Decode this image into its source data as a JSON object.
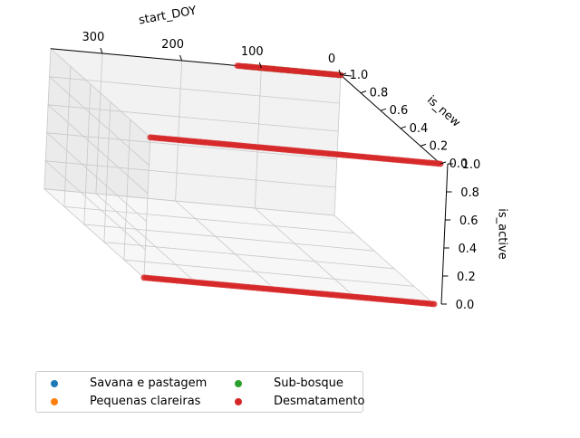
{
  "chart_data": {
    "type": "scatter",
    "projection": "3d",
    "axes": {
      "x": {
        "label": "start_DOY",
        "ticks": [
          0,
          100,
          200,
          300
        ],
        "range": [
          0,
          365
        ]
      },
      "y": {
        "label": "is_new",
        "ticks": [
          "0.0",
          "0.2",
          "0.4",
          "0.6",
          "0.8",
          "1.0"
        ],
        "range": [
          0,
          1
        ]
      },
      "z": {
        "label": "is_active",
        "ticks": [
          "0.0",
          "0.2",
          "0.4",
          "0.6",
          "0.8",
          "1.0"
        ],
        "range": [
          0,
          1
        ]
      }
    },
    "grid": true,
    "legend": {
      "placement": "bottom-left",
      "columns": 2
    },
    "series": [
      {
        "name": "Savana e pastagem",
        "color": "#1f77b4",
        "segments": [
          {
            "is_new": 1,
            "is_active": 1,
            "start_DOY_range": [
              0,
              120
            ]
          }
        ]
      },
      {
        "name": "Pequenas clareiras",
        "color": "#ff7f0e",
        "segments": [
          {
            "is_new": 1,
            "is_active": 1,
            "start_DOY_range": [
              0,
              120
            ]
          }
        ]
      },
      {
        "name": "Sub-bosque",
        "color": "#2ca02c",
        "segments": [
          {
            "is_new": 1,
            "is_active": 1,
            "start_DOY_range": [
              0,
              120
            ]
          }
        ]
      },
      {
        "name": "Desmatamento",
        "color": "#d62728",
        "segments": [
          {
            "is_new": 1,
            "is_active": 1,
            "start_DOY_range": [
              0,
              130
            ]
          },
          {
            "is_new": 0,
            "is_active": 1,
            "start_DOY_range": [
              0,
              365
            ]
          },
          {
            "is_new": 0,
            "is_active": 0,
            "start_DOY_range": [
              0,
              365
            ]
          }
        ]
      }
    ]
  }
}
